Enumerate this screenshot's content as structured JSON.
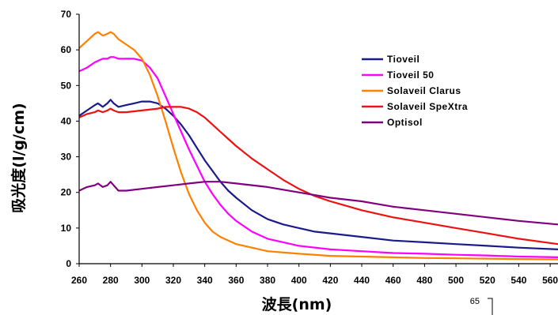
{
  "chart_data": {
    "type": "line",
    "title": "",
    "xlabel": "波長(nm)",
    "ylabel": "吸光度(l/g/cm)",
    "xlim": [
      260,
      565
    ],
    "ylim": [
      0,
      70
    ],
    "xticks": [
      260,
      280,
      300,
      320,
      340,
      360,
      380,
      400,
      420,
      440,
      460,
      480,
      500,
      520,
      540,
      560
    ],
    "yticks": [
      0,
      10,
      20,
      30,
      40,
      50,
      60,
      70
    ],
    "grid": false,
    "legend_position": "right",
    "series": [
      {
        "name": "Tioveil",
        "color": "#1a1a8c",
        "points": [
          [
            260,
            41.5
          ],
          [
            265,
            43
          ],
          [
            270,
            44.5
          ],
          [
            272,
            45
          ],
          [
            275,
            44
          ],
          [
            278,
            45
          ],
          [
            280,
            46
          ],
          [
            282,
            45
          ],
          [
            285,
            44
          ],
          [
            290,
            44.5
          ],
          [
            295,
            45
          ],
          [
            300,
            45.5
          ],
          [
            305,
            45.5
          ],
          [
            310,
            45
          ],
          [
            315,
            43.5
          ],
          [
            320,
            41.5
          ],
          [
            325,
            39
          ],
          [
            330,
            36
          ],
          [
            335,
            32.5
          ],
          [
            340,
            29
          ],
          [
            345,
            26
          ],
          [
            350,
            23
          ],
          [
            355,
            20.5
          ],
          [
            360,
            18.5
          ],
          [
            370,
            15
          ],
          [
            380,
            12.5
          ],
          [
            390,
            11
          ],
          [
            400,
            10
          ],
          [
            410,
            9
          ],
          [
            420,
            8.5
          ],
          [
            440,
            7.5
          ],
          [
            460,
            6.5
          ],
          [
            480,
            6
          ],
          [
            500,
            5.5
          ],
          [
            520,
            5
          ],
          [
            540,
            4.5
          ],
          [
            565,
            4
          ]
        ]
      },
      {
        "name": "Tioveil 50",
        "color": "#ff00ff",
        "points": [
          [
            260,
            54
          ],
          [
            265,
            55
          ],
          [
            270,
            56.5
          ],
          [
            275,
            57.5
          ],
          [
            278,
            57.5
          ],
          [
            280,
            58
          ],
          [
            282,
            58
          ],
          [
            285,
            57.5
          ],
          [
            290,
            57.5
          ],
          [
            295,
            57.5
          ],
          [
            300,
            57
          ],
          [
            305,
            55
          ],
          [
            310,
            52
          ],
          [
            315,
            47
          ],
          [
            320,
            42
          ],
          [
            325,
            37
          ],
          [
            330,
            32
          ],
          [
            335,
            27.5
          ],
          [
            340,
            23
          ],
          [
            345,
            19.5
          ],
          [
            350,
            16.5
          ],
          [
            355,
            14
          ],
          [
            360,
            12
          ],
          [
            370,
            9
          ],
          [
            380,
            7
          ],
          [
            390,
            6
          ],
          [
            400,
            5
          ],
          [
            420,
            4
          ],
          [
            440,
            3.5
          ],
          [
            460,
            3
          ],
          [
            480,
            2.8
          ],
          [
            500,
            2.5
          ],
          [
            520,
            2.3
          ],
          [
            540,
            2
          ],
          [
            565,
            1.8
          ]
        ]
      },
      {
        "name": "Solaveil Clarus",
        "color": "#ff8000",
        "points": [
          [
            260,
            60.5
          ],
          [
            265,
            62.5
          ],
          [
            270,
            64.5
          ],
          [
            272,
            65
          ],
          [
            275,
            64
          ],
          [
            278,
            64.5
          ],
          [
            280,
            65
          ],
          [
            282,
            64.5
          ],
          [
            285,
            63
          ],
          [
            290,
            61.5
          ],
          [
            295,
            60
          ],
          [
            300,
            57.5
          ],
          [
            305,
            53
          ],
          [
            310,
            47
          ],
          [
            315,
            40
          ],
          [
            320,
            32.5
          ],
          [
            325,
            25.5
          ],
          [
            330,
            19.5
          ],
          [
            335,
            15
          ],
          [
            340,
            11.5
          ],
          [
            345,
            9
          ],
          [
            350,
            7.5
          ],
          [
            360,
            5.5
          ],
          [
            370,
            4.5
          ],
          [
            380,
            3.5
          ],
          [
            400,
            2.8
          ],
          [
            420,
            2.2
          ],
          [
            440,
            2
          ],
          [
            460,
            1.8
          ],
          [
            480,
            1.6
          ],
          [
            500,
            1.5
          ],
          [
            520,
            1.4
          ],
          [
            540,
            1.3
          ],
          [
            565,
            1.2
          ]
        ]
      },
      {
        "name": "Solaveil SpeXtra",
        "color": "#ee1111",
        "points": [
          [
            260,
            41
          ],
          [
            265,
            42
          ],
          [
            270,
            42.5
          ],
          [
            272,
            43
          ],
          [
            275,
            42.5
          ],
          [
            278,
            43
          ],
          [
            280,
            43.5
          ],
          [
            282,
            43
          ],
          [
            285,
            42.5
          ],
          [
            290,
            42.5
          ],
          [
            300,
            43
          ],
          [
            310,
            43.5
          ],
          [
            315,
            44
          ],
          [
            320,
            44
          ],
          [
            325,
            44
          ],
          [
            330,
            43.5
          ],
          [
            335,
            42.5
          ],
          [
            340,
            41
          ],
          [
            345,
            39
          ],
          [
            350,
            37
          ],
          [
            355,
            35
          ],
          [
            360,
            33
          ],
          [
            370,
            29.5
          ],
          [
            380,
            26.5
          ],
          [
            390,
            23.5
          ],
          [
            400,
            21
          ],
          [
            410,
            19
          ],
          [
            420,
            17.5
          ],
          [
            440,
            15
          ],
          [
            460,
            13
          ],
          [
            480,
            11.5
          ],
          [
            500,
            10
          ],
          [
            520,
            8.5
          ],
          [
            540,
            7
          ],
          [
            565,
            5.5
          ]
        ]
      },
      {
        "name": "Optisol",
        "color": "#800080",
        "points": [
          [
            260,
            20.5
          ],
          [
            265,
            21.5
          ],
          [
            270,
            22
          ],
          [
            272,
            22.5
          ],
          [
            275,
            21.5
          ],
          [
            278,
            22
          ],
          [
            280,
            23
          ],
          [
            282,
            22
          ],
          [
            285,
            20.5
          ],
          [
            290,
            20.5
          ],
          [
            300,
            21
          ],
          [
            310,
            21.5
          ],
          [
            320,
            22
          ],
          [
            330,
            22.5
          ],
          [
            340,
            23
          ],
          [
            350,
            23
          ],
          [
            360,
            22.5
          ],
          [
            380,
            21.5
          ],
          [
            400,
            20
          ],
          [
            420,
            18.5
          ],
          [
            440,
            17.5
          ],
          [
            460,
            16
          ],
          [
            480,
            15
          ],
          [
            500,
            14
          ],
          [
            520,
            13
          ],
          [
            540,
            12
          ],
          [
            565,
            11
          ]
        ]
      }
    ]
  },
  "page_number": "65"
}
